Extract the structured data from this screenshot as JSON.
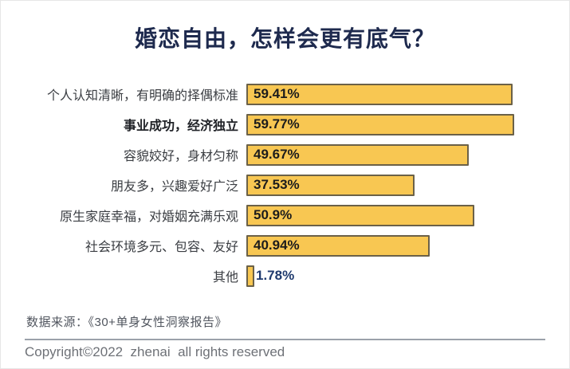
{
  "title": "婚恋自由，怎样会更有底气？",
  "colors": {
    "title": "#1E2A4E",
    "bar_fill": "#F8C752",
    "bar_border": "#6B6148",
    "value_in_bar": "#1C1C1C",
    "value_outside": "#1F3A6E",
    "category_label": "#3A3D42",
    "divider": "#9BA1AA",
    "source_text": "#51565F",
    "copyright_text": "#6E7177"
  },
  "chart_data": {
    "type": "bar",
    "orientation": "horizontal",
    "title": "婚恋自由，怎样会更有底气？",
    "categories": [
      "个人认知清晰，有明确的择偶标准",
      "事业成功，经济独立",
      "容貌姣好，身材匀称",
      "朋友多，兴趣爱好广泛",
      "原生家庭幸福，对婚姻充满乐观",
      "社会环境多元、包容、友好",
      "其他"
    ],
    "values": [
      59.41,
      59.77,
      49.67,
      37.53,
      50.9,
      40.94,
      1.78
    ],
    "value_labels": [
      "59.41%",
      "59.77%",
      "49.67%",
      "37.53%",
      "50.9%",
      "40.94%",
      "1.78%"
    ],
    "emphasized_category_index": 1,
    "xlim": [
      0,
      63
    ],
    "grid": false,
    "legend": false,
    "bar_color": "#F8C752",
    "value_label_position": "inside-left, outside for smallest bar"
  },
  "footer": {
    "source": "数据来源：《30+单身女性洞察报告》",
    "copyright": "Copyright©2022  zhenai  all rights reserved"
  }
}
